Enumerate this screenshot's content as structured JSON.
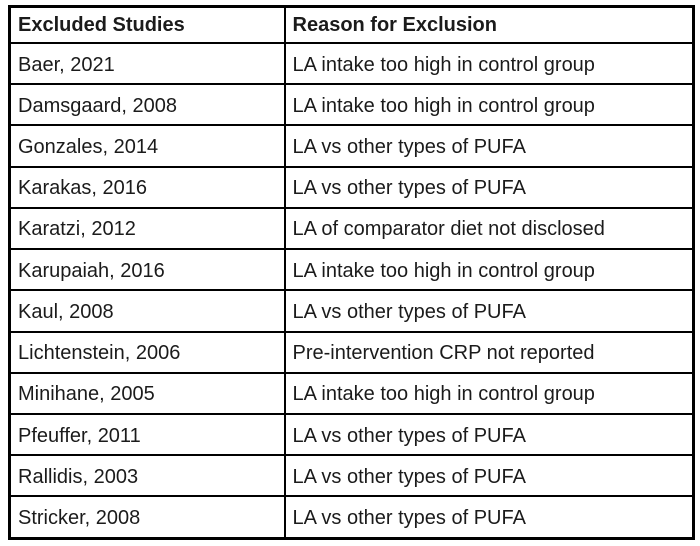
{
  "table": {
    "headers": {
      "study": "Excluded Studies",
      "reason": "Reason for Exclusion"
    },
    "rows": [
      {
        "study": "Baer, 2021",
        "reason": "LA intake too high in control group"
      },
      {
        "study": "Damsgaard, 2008",
        "reason": "LA intake too high in control group"
      },
      {
        "study": "Gonzales, 2014",
        "reason": "LA vs other types of PUFA"
      },
      {
        "study": "Karakas, 2016",
        "reason": "LA vs other types of PUFA"
      },
      {
        "study": "Karatzi, 2012",
        "reason": "LA of comparator diet not disclosed"
      },
      {
        "study": "Karupaiah, 2016",
        "reason": "LA intake too high in control group"
      },
      {
        "study": "Kaul, 2008",
        "reason": "LA vs other types of PUFA"
      },
      {
        "study": "Lichtenstein, 2006",
        "reason": "Pre-intervention CRP not reported"
      },
      {
        "study": "Minihane, 2005",
        "reason": "LA intake too high in control group"
      },
      {
        "study": "Pfeuffer, 2011",
        "reason": "LA vs other types of PUFA"
      },
      {
        "study": "Rallidis, 2003",
        "reason": "LA vs other types of PUFA"
      },
      {
        "study": "Stricker, 2008",
        "reason": "LA vs other types of PUFA"
      }
    ],
    "colors": {
      "border": "#000000",
      "text": "#1b1b1b",
      "background": "#ffffff"
    }
  }
}
